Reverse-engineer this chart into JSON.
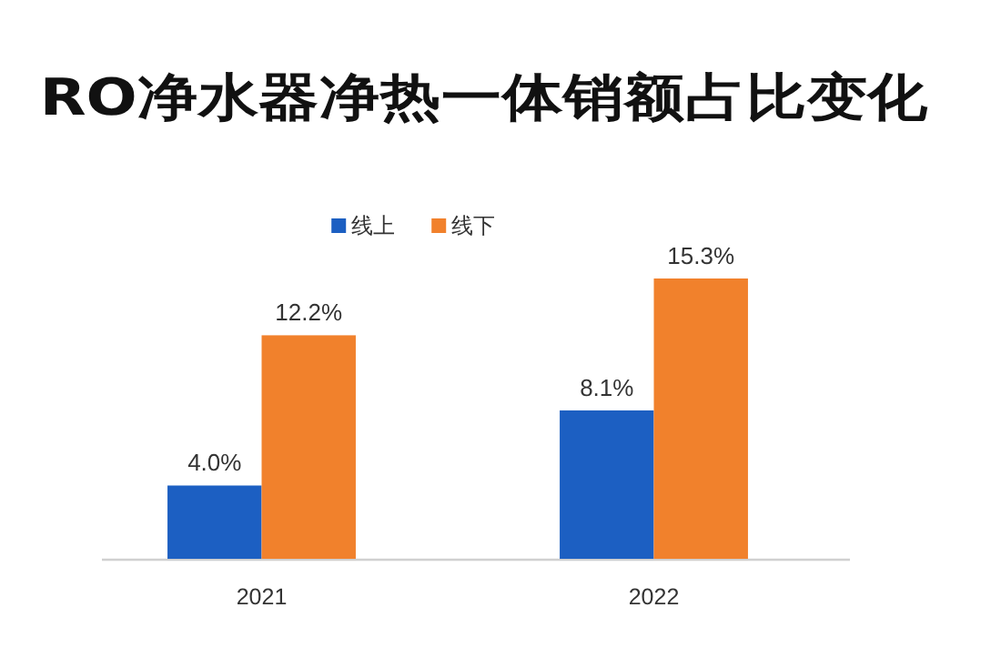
{
  "chart_data": {
    "type": "bar",
    "title": "RO净水器净热一体销额占比变化",
    "categories": [
      "2021",
      "2022"
    ],
    "series": [
      {
        "name": "线上",
        "color": "#1c5fc2",
        "values": [
          4.0,
          8.1
        ],
        "value_labels": [
          "4.0%",
          "8.1%"
        ]
      },
      {
        "name": "线下",
        "color": "#f1812c",
        "values": [
          12.2,
          15.3
        ],
        "value_labels": [
          "12.2%",
          "15.3%"
        ]
      }
    ],
    "legend": "top",
    "tick_labels": "x"
  }
}
